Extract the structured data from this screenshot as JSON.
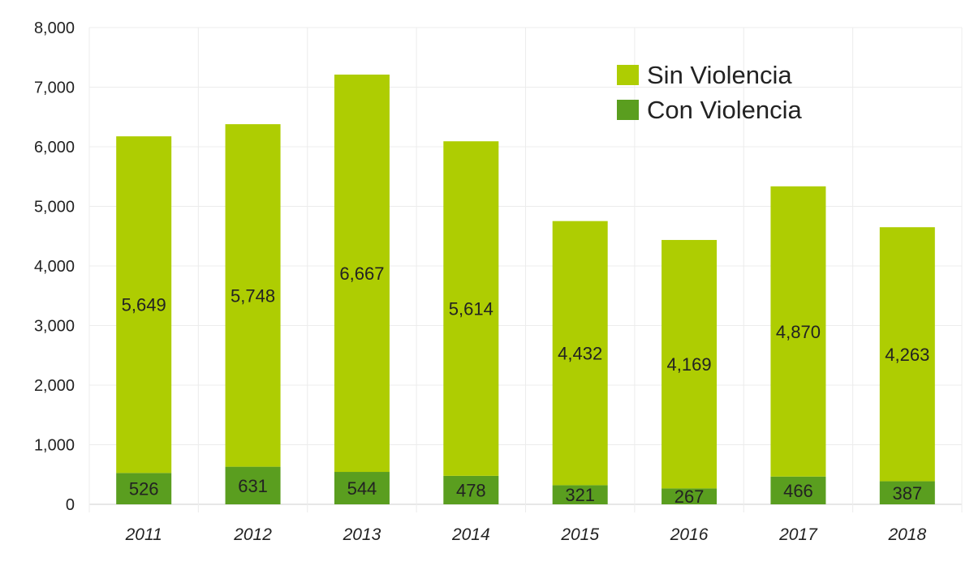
{
  "chart_data": {
    "type": "bar",
    "stacked": true,
    "categories": [
      "2011",
      "2012",
      "2013",
      "2014",
      "2015",
      "2016",
      "2017",
      "2018"
    ],
    "series": [
      {
        "name": "Con Violencia",
        "values": [
          526,
          631,
          544,
          478,
          321,
          267,
          466,
          387
        ],
        "color": "#5a9e1f"
      },
      {
        "name": "Sin Violencia",
        "values": [
          5649,
          5748,
          6667,
          5614,
          4432,
          4169,
          4870,
          4263
        ],
        "color": "#aecd02"
      }
    ],
    "title": "",
    "xlabel": "",
    "ylabel": "",
    "ylim": [
      0,
      8000
    ],
    "yticks": [
      0,
      1000,
      2000,
      3000,
      4000,
      5000,
      6000,
      7000,
      8000
    ],
    "ytick_labels": [
      "0",
      "1,000",
      "2,000",
      "3,000",
      "4,000",
      "5,000",
      "6,000",
      "7,000",
      "8,000"
    ],
    "value_labels": {
      "Con Violencia": [
        "526",
        "631",
        "544",
        "478",
        "321",
        "267",
        "466",
        "387"
      ],
      "Sin Violencia": [
        "5,649",
        "5,748",
        "6,667",
        "5,614",
        "4,432",
        "4,169",
        "4,870",
        "4,263"
      ]
    },
    "grid": true,
    "legend": {
      "position": "top-right",
      "items": [
        "Sin Violencia",
        "Con Violencia"
      ]
    }
  }
}
